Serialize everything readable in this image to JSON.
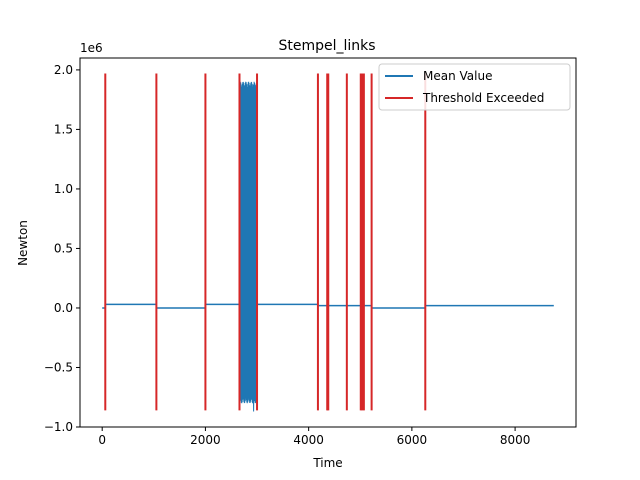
{
  "chart_data": {
    "type": "line",
    "title": "Stempel_links",
    "xlabel": "Time",
    "ylabel": "Newton",
    "y_multiplier_label": "1e6",
    "xlim": [
      -430,
      9180
    ],
    "ylim": [
      -1.0,
      2.1
    ],
    "x_ticks": [
      0,
      2000,
      4000,
      6000,
      8000
    ],
    "x_tick_labels": [
      "0",
      "2000",
      "4000",
      "6000",
      "8000"
    ],
    "y_ticks": [
      -1.0,
      -0.5,
      0.0,
      0.5,
      1.0,
      1.5,
      2.0
    ],
    "y_tick_labels": [
      "−1.0",
      "−0.5",
      "0.0",
      "0.5",
      "1.0",
      "1.5",
      "2.0"
    ],
    "grid": false,
    "legend_position": "top-right",
    "legend": [
      {
        "label": "Mean Value",
        "color": "#1f77b4",
        "kind": "line"
      },
      {
        "label": "Threshold Exceeded",
        "color": "#d62728",
        "kind": "line"
      }
    ],
    "series": [
      {
        "name": "Mean Value",
        "color": "#1f77b4",
        "segments": [
          {
            "x": [
              0,
              60,
              60,
              1050
            ],
            "y": [
              0.0,
              0.0,
              0.03,
              0.03
            ]
          },
          {
            "x": [
              1050,
              2000
            ],
            "y": [
              0.0,
              0.0
            ]
          },
          {
            "x": [
              2000,
              2650
            ],
            "y": [
              0.03,
              0.03
            ]
          },
          {
            "x": [
              2650,
              3000
            ],
            "oscillating": true,
            "y_low": -0.75,
            "y_high": 1.85,
            "spike_high": 1.97,
            "spike_low": -0.87
          },
          {
            "x": [
              3000,
              4180
            ],
            "y": [
              0.03,
              0.03
            ]
          },
          {
            "x": [
              4180,
              5220
            ],
            "y": [
              0.02,
              0.02
            ]
          },
          {
            "x": [
              5220,
              6260
            ],
            "y": [
              0.0,
              0.0
            ]
          },
          {
            "x": [
              6260,
              8750
            ],
            "y": [
              0.02,
              0.02
            ]
          }
        ]
      },
      {
        "name": "Threshold Exceeded",
        "color": "#d62728",
        "vlines_x": [
          60,
          1050,
          2000,
          2660,
          3000,
          4180,
          4360,
          4380,
          4740,
          5010,
          5040,
          5070,
          5220,
          6260
        ],
        "y_min": -0.86,
        "y_max": 1.97
      }
    ]
  }
}
